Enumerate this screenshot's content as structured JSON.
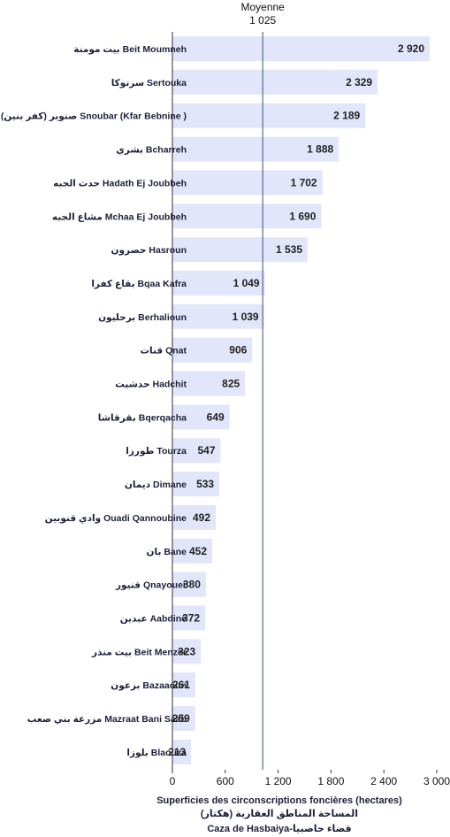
{
  "chart_data": {
    "type": "bar",
    "orientation": "horizontal",
    "categories": [
      "بيت مومنة Beit Moumneh",
      "سرتوكا Sertouka",
      "صنوبر (كفر بنين) Snoubar (Kfar Bebnine )",
      "بشري Bcharreh",
      "حدث الجبه Hadath Ej Joubbeh",
      "مشاع الجبه Mchaa Ej Joubbeh",
      "حصرون Hasroun",
      "بقاع كفرا Bqaa Kafra",
      "برحليون Berhalioun",
      "قنات Qnat",
      "حدشيت Hadchit",
      "بقرقاشا Bqerqacha",
      "طورزا Tourza",
      "ديمان Dimane",
      "وادي قنوبين Ouadi Qannoubine",
      "بان Bane",
      "قنيور Qnayouer",
      "عبدين Aabdine",
      "بيت منذر Beit Menzer",
      "بزعون Bazaaoun",
      "مزرعة بني صعب Mazraat Bani Saab",
      "بلوزا Blaouza"
    ],
    "values": [
      2920,
      2329,
      2189,
      1888,
      1702,
      1690,
      1535,
      1049,
      1039,
      906,
      825,
      649,
      547,
      533,
      492,
      452,
      380,
      372,
      323,
      261,
      259,
      213
    ],
    "value_labels": [
      "2 920",
      "2 329",
      "2 189",
      "1 888",
      "1 702",
      "1 690",
      "1 535",
      "1 049",
      "1 039",
      "906",
      "825",
      "649",
      "547",
      "533",
      "492",
      "452",
      "380",
      "372",
      "323",
      "261",
      "259",
      "213"
    ],
    "xlim": [
      0,
      3000
    ],
    "xticks": [
      0,
      600,
      1200,
      1800,
      2400,
      3000
    ],
    "xtick_labels": [
      "0",
      "600",
      "1 200",
      "1 800",
      "2 400",
      "3 000"
    ],
    "mean": {
      "label": "Moyenne",
      "value": 1025,
      "value_label": "1 025"
    },
    "xlabel_lines": [
      "Superficies des circonscriptions foncières (hectares)",
      "المساحة المناطق العقارية (هكتار)",
      "Caza de Hasbaiya-قضاء حاصبيا"
    ],
    "grid": false,
    "legend": "none",
    "colors": {
      "bar": "#e1e6fa",
      "mean_line": "#3d4f7c",
      "axis": "#333333",
      "text": "#1c1f3a"
    }
  }
}
